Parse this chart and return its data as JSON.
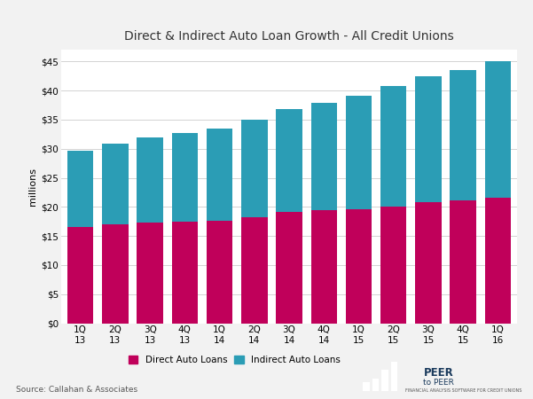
{
  "title": "Direct & Indirect Auto Loan Growth - All Credit Unions",
  "categories": [
    "1Q 13",
    "2Q 13",
    "3Q 13",
    "4Q 13",
    "1Q 14",
    "2Q 14",
    "3Q 14",
    "4Q 14",
    "1Q 15",
    "2Q 15",
    "3Q 15",
    "4Q 15",
    "1Q 16"
  ],
  "direct": [
    16.5,
    17.0,
    17.3,
    17.5,
    17.6,
    18.2,
    19.1,
    19.4,
    19.6,
    20.1,
    20.8,
    21.1,
    21.5
  ],
  "indirect": [
    13.2,
    13.8,
    14.6,
    15.2,
    15.8,
    16.8,
    17.7,
    18.5,
    19.5,
    20.7,
    21.7,
    22.5,
    23.5
  ],
  "direct_color": "#C0005A",
  "indirect_color": "#2B9DB5",
  "background_color": "#F2F2F2",
  "plot_bg_color": "#FFFFFF",
  "ylabel": "millions",
  "ylim": [
    0,
    47
  ],
  "yticks": [
    0,
    5,
    10,
    15,
    20,
    25,
    30,
    35,
    40,
    45
  ],
  "legend_direct": "Direct Auto Loans",
  "legend_indirect": "Indirect Auto Loans",
  "source_text": "Source: Callahan & Associates",
  "title_fontsize": 10,
  "label_fontsize": 8,
  "tick_fontsize": 7.5,
  "bar_width": 0.75
}
